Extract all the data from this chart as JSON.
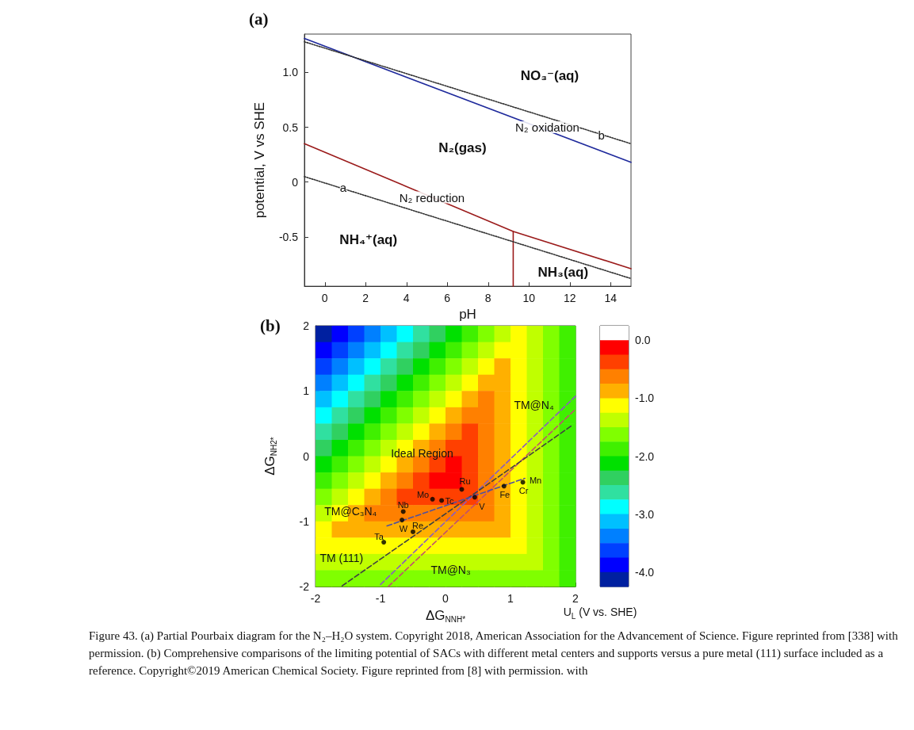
{
  "chart_data": [
    {
      "type": "line",
      "xlabel": "pH",
      "ylabel": "potential, V vs SHE",
      "xlim": [
        -1,
        15
      ],
      "ylim": [
        -0.95,
        1.35
      ],
      "xticks": [
        0,
        2,
        4,
        6,
        8,
        10,
        12,
        14
      ],
      "yticks": [
        -0.5,
        0,
        {
          "value": 0.5,
          "label": "0.5"
        },
        {
          "value": 1,
          "label": "1.0"
        }
      ],
      "series": [
        {
          "color": "#1f2a9c",
          "x": [
            -1,
            15
          ],
          "values": [
            1.31,
            0.18
          ]
        },
        {
          "color": "#333333",
          "line_style": "dotted",
          "x": [
            -1,
            15
          ],
          "values": [
            1.28,
            0.35
          ]
        },
        {
          "color": "#9b1b1b",
          "x": [
            -1,
            9.23,
            15
          ],
          "values": [
            0.35,
            -0.45,
            -0.79
          ]
        },
        {
          "color": "#9b1b1b",
          "x": [
            9.23,
            9.23
          ],
          "values": [
            -0.45,
            -0.95
          ]
        },
        {
          "color": "#333333",
          "line_style": "dotted",
          "x": [
            -1,
            15
          ],
          "values": [
            0.05,
            -0.88
          ]
        }
      ],
      "annotations": [
        "(a)",
        "NO₃⁻(aq)",
        "N₂(gas)",
        "NH₄⁺(aq)",
        "NH₃(aq)",
        {
          "text": "N₂ oxidation",
          "x": 10.9,
          "y": 0.5
        },
        {
          "text": "N₂ reduction",
          "x": 5.25,
          "y": -0.14
        },
        {
          "text": "a",
          "x": 0.9,
          "y": -0.05
        },
        {
          "text": "b",
          "x": 13.55,
          "y": 0.43
        }
      ]
    },
    {
      "type": "heatmap",
      "xlabel": "ΔG$_{NNH*}$",
      "ylabel": "ΔG$_{NH2*}$",
      "clabel": "U$_{L}$ (V vs. SHE)",
      "xlim": [
        -2,
        2
      ],
      "ylim": [
        -2,
        2
      ],
      "xticks": [
        -2,
        -1,
        0,
        1,
        2
      ],
      "yticks": [
        -2,
        -1,
        0,
        1,
        2
      ],
      "clim": [
        -4.25,
        0.25
      ],
      "cticks": [
        {
          "value": 0,
          "label": "0.0"
        },
        {
          "value": -1,
          "label": "-1.0"
        },
        {
          "value": -2,
          "label": "-2.0"
        },
        {
          "value": -3,
          "label": "-3.0"
        },
        {
          "value": -4,
          "label": "-4.0"
        }
      ],
      "cells": [
        [
          -4.2,
          -3.95,
          -3.7,
          -3.45,
          -3.2,
          -2.95,
          -2.7,
          -2.45,
          -2.2,
          -1.95,
          -1.7,
          -1.45,
          -1.2,
          -1.45,
          -1.7,
          -1.95
        ],
        [
          -3.95,
          -3.7,
          -3.45,
          -3.2,
          -2.95,
          -2.7,
          -2.45,
          -2.2,
          -1.95,
          -1.7,
          -1.45,
          -1.2,
          -1.2,
          -1.45,
          -1.7,
          -1.95
        ],
        [
          -3.7,
          -3.45,
          -3.2,
          -2.95,
          -2.7,
          -2.45,
          -2.2,
          -1.95,
          -1.7,
          -1.45,
          -1.2,
          -0.95,
          -1.2,
          -1.45,
          -1.7,
          -1.95
        ],
        [
          -3.45,
          -3.2,
          -2.95,
          -2.7,
          -2.45,
          -2.2,
          -1.95,
          -1.7,
          -1.45,
          -1.2,
          -0.95,
          -0.95,
          -1.2,
          -1.45,
          -1.7,
          -1.95
        ],
        [
          -3.2,
          -2.95,
          -2.7,
          -2.45,
          -2.2,
          -1.95,
          -1.7,
          -1.45,
          -1.2,
          -0.95,
          -0.7,
          -0.95,
          -1.2,
          -1.45,
          -1.7,
          -1.95
        ],
        [
          -2.95,
          -2.7,
          -2.45,
          -2.2,
          -1.95,
          -1.7,
          -1.45,
          -1.2,
          -0.95,
          -0.7,
          -0.7,
          -0.95,
          -1.2,
          -1.45,
          -1.7,
          -1.95
        ],
        [
          -2.7,
          -2.45,
          -2.2,
          -1.95,
          -1.7,
          -1.45,
          -1.2,
          -0.95,
          -0.7,
          -0.45,
          -0.7,
          -0.95,
          -1.2,
          -1.45,
          -1.7,
          -1.95
        ],
        [
          -2.45,
          -2.2,
          -1.95,
          -1.7,
          -1.45,
          -1.2,
          -0.95,
          -0.7,
          -0.45,
          -0.45,
          -0.7,
          -0.95,
          -1.2,
          -1.45,
          -1.7,
          -1.95
        ],
        [
          -2.2,
          -1.95,
          -1.7,
          -1.45,
          -1.2,
          -0.95,
          -0.7,
          -0.45,
          -0.2,
          -0.45,
          -0.7,
          -0.95,
          -1.2,
          -1.45,
          -1.7,
          -1.95
        ],
        [
          -1.95,
          -1.7,
          -1.45,
          -1.2,
          -0.95,
          -0.7,
          -0.45,
          -0.2,
          -0.2,
          -0.45,
          -0.7,
          -0.95,
          -1.2,
          -1.45,
          -1.7,
          -1.95
        ],
        [
          -1.7,
          -1.45,
          -1.2,
          -0.95,
          -0.7,
          -0.45,
          -0.3,
          -0.3,
          -0.3,
          -0.45,
          -0.7,
          -0.95,
          -1.2,
          -1.45,
          -1.7,
          -1.95
        ],
        [
          -1.45,
          -1.2,
          -0.95,
          -0.7,
          -0.55,
          -0.55,
          -0.55,
          -0.55,
          -0.55,
          -0.55,
          -0.7,
          -0.95,
          -1.2,
          -1.45,
          -1.7,
          -1.95
        ],
        [
          -1.2,
          -0.95,
          -0.8,
          -0.8,
          -0.8,
          -0.8,
          -0.8,
          -0.8,
          -0.8,
          -0.8,
          -0.8,
          -0.95,
          -1.2,
          -1.45,
          -1.7,
          -1.95
        ],
        [
          -1.05,
          -1.05,
          -1.05,
          -1.05,
          -1.05,
          -1.05,
          -1.05,
          -1.05,
          -1.05,
          -1.05,
          -1.05,
          -1.05,
          -1.2,
          -1.45,
          -1.7,
          -1.95
        ],
        [
          -1.3,
          -1.3,
          -1.3,
          -1.3,
          -1.3,
          -1.3,
          -1.3,
          -1.3,
          -1.3,
          -1.3,
          -1.3,
          -1.3,
          -1.3,
          -1.45,
          -1.7,
          -1.95
        ],
        [
          -1.55,
          -1.55,
          -1.55,
          -1.55,
          -1.55,
          -1.55,
          -1.55,
          -1.55,
          -1.55,
          -1.55,
          -1.55,
          -1.55,
          -1.55,
          -1.55,
          -1.7,
          -1.95
        ]
      ],
      "series": [
        {
          "type": "line",
          "line_style": "dashed",
          "color": "#8a5cc0",
          "x": [
            -1,
            2
          ],
          "values": [
            -1.97,
            0.92
          ]
        },
        {
          "type": "line",
          "line_style": "dashed",
          "color": "#c0506e",
          "x": [
            -0.88,
            2
          ],
          "values": [
            -2,
            0.72
          ]
        },
        {
          "type": "line",
          "line_style": "dashed",
          "color": "#404040",
          "x": [
            -1.59,
            1.93
          ],
          "values": [
            -1.99,
            0.46
          ]
        },
        {
          "type": "line",
          "line_style": "dashed",
          "color": "#5050a0",
          "x": [
            -0.9,
            1.22
          ],
          "values": [
            -1.07,
            -0.34
          ]
        },
        {
          "type": "scatter",
          "marker": "circle",
          "color": "#000000",
          "x": [
            0.25,
            -0.2,
            -0.06,
            0.45,
            0.9,
            1.19,
            -0.65,
            -0.67,
            -0.5,
            -0.95
          ],
          "values": [
            -0.51,
            -0.66,
            -0.68,
            -0.63,
            -0.46,
            -0.4,
            -0.85,
            -0.98,
            -1.16,
            -1.32
          ]
        }
      ],
      "annotations": [
        "(b)",
        {
          "text": "Ru",
          "x": 0.25,
          "y": -0.51
        },
        {
          "text": "Mo",
          "x": -0.2,
          "y": -0.66
        },
        {
          "text": "Tc",
          "x": -0.06,
          "y": -0.68
        },
        {
          "text": "V",
          "x": 0.45,
          "y": -0.63
        },
        {
          "text": "Fe",
          "x": 0.9,
          "y": -0.46
        },
        {
          "text": "Cr",
          "x": 1.19,
          "y": -0.4
        },
        {
          "text": "Mn",
          "x": 1.19,
          "y": -0.4
        },
        {
          "text": "Nb",
          "x": -0.65,
          "y": -0.85
        },
        {
          "text": "W",
          "x": -0.67,
          "y": -0.98
        },
        {
          "text": "Re",
          "x": -0.5,
          "y": -1.16
        },
        {
          "text": "Ta",
          "x": -0.95,
          "y": -1.32
        },
        "Ideal Region",
        "TM@N₄",
        "TM@C₃N₄",
        "TM (111)",
        "TM@N₃",
        "Figure 43. (a) Partial Pourbaix diagram for the N₂–H₂O system. Copyright 2018, American Association for the Advancement of Science. Figure reprinted from [338] with permission. (b) Comprehensive comparisons of the limiting potential of SACs with different metal centers and supports versus a pure metal (111) surface included as a reference. Copyright©2019 American Chemical Society. Figure reprinted from [8] with permission. with"
      ]
    }
  ]
}
